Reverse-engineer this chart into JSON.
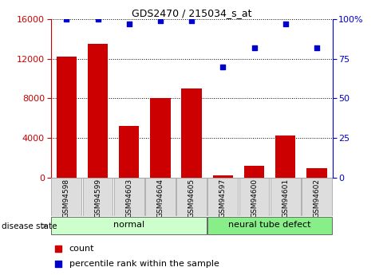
{
  "title": "GDS2470 / 215034_s_at",
  "samples": [
    "GSM94598",
    "GSM94599",
    "GSM94603",
    "GSM94604",
    "GSM94605",
    "GSM94597",
    "GSM94600",
    "GSM94601",
    "GSM94602"
  ],
  "counts": [
    12200,
    13500,
    5200,
    8000,
    9000,
    200,
    1200,
    4200,
    900
  ],
  "percentiles": [
    100,
    100,
    97,
    99,
    99,
    70,
    82,
    97,
    82
  ],
  "groups": [
    {
      "label": "normal",
      "indices": [
        0,
        1,
        2,
        3,
        4
      ],
      "color": "#ccffcc"
    },
    {
      "label": "neural tube defect",
      "indices": [
        5,
        6,
        7,
        8
      ],
      "color": "#88ee88"
    }
  ],
  "bar_color": "#cc0000",
  "percentile_color": "#0000cc",
  "left_axis_color": "#cc0000",
  "right_axis_color": "#0000cc",
  "ylim_left": [
    0,
    16000
  ],
  "ylim_right": [
    0,
    100
  ],
  "left_ticks": [
    0,
    4000,
    8000,
    12000,
    16000
  ],
  "right_ticks": [
    0,
    25,
    50,
    75,
    100
  ],
  "tick_bg_color": "#dddddd",
  "disease_state_label": "disease state",
  "legend_count_label": "count",
  "legend_percentile_label": "percentile rank within the sample"
}
